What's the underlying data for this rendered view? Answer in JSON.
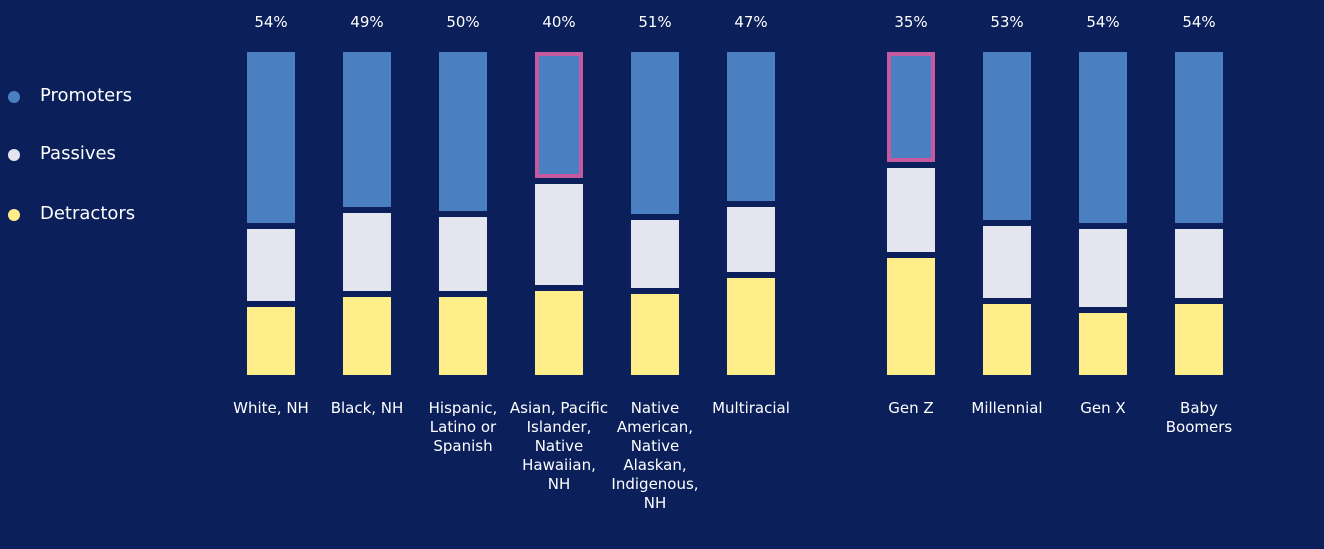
{
  "chart_data": {
    "type": "stacked_bar",
    "categories": [
      "White, NH",
      "Black, NH",
      "Hispanic, Latino or Spanish",
      "Asian, Pacific Islander, Native Hawaiian, NH",
      "Native American, Native Alaskan, Indigenous, NH",
      "Multiracial",
      "Gen Z",
      "Millennial",
      "Gen X",
      "Baby Boomers"
    ],
    "series": [
      {
        "name": "Promoters",
        "color": "#4a7fc1",
        "values": [
          54,
          49,
          50,
          40,
          51,
          47,
          35,
          53,
          54,
          54
        ],
        "value_labels": [
          "54%",
          "49%",
          "50%",
          "40%",
          "51%",
          "47%",
          "35%",
          "53%",
          "54%",
          "54%"
        ]
      },
      {
        "name": "Passives",
        "color": "#e4e5ee",
        "values": [
          24,
          26,
          25,
          33,
          23,
          22,
          28,
          24,
          26,
          23
        ]
      },
      {
        "name": "Detractors",
        "color": "#fdee8a",
        "values": [
          22,
          25,
          25,
          27,
          26,
          31,
          37,
          23,
          20,
          23
        ]
      }
    ],
    "ylim": [
      0,
      100
    ],
    "highlight": [
      3,
      6
    ],
    "highlight_color": "#c65aa0"
  }
}
